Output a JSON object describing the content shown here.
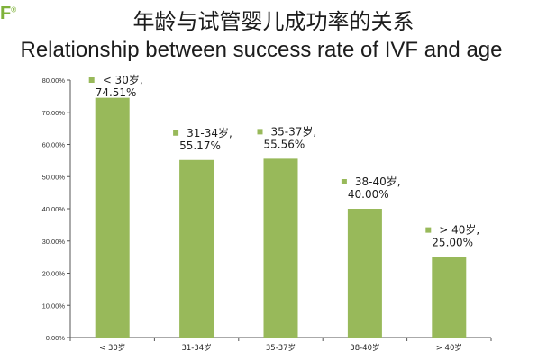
{
  "logo": {
    "text": "F",
    "mark": "®"
  },
  "title_cn": "年龄与试管婴儿成功率的关系",
  "title_en": "Relationship between success rate of IVF and age",
  "colors": {
    "bar": "#98b95a",
    "marker": "#98b95a",
    "axis": "#555555",
    "text": "#1c1c1c"
  },
  "chart_data": {
    "type": "bar",
    "title": "年龄与试管婴儿成功率的关系 / Relationship between success rate of IVF and age",
    "categories": [
      "< 30岁",
      "31-34岁",
      "35-37岁",
      "38-40岁",
      "> 40岁"
    ],
    "values": [
      74.51,
      55.17,
      55.56,
      40.0,
      25.0
    ],
    "value_unit": "%",
    "ylim": [
      0,
      80
    ],
    "ytick_step": 10,
    "ytick_labels": [
      "0.00%",
      "10.00%",
      "20.00%",
      "30.00%",
      "40.00%",
      "50.00%",
      "60.00%",
      "70.00%",
      "80.00%"
    ],
    "data_labels": [
      {
        "category": "< 30岁",
        "value": "74.51%"
      },
      {
        "category": "31-34岁",
        "value": "55.17%"
      },
      {
        "category": "35-37岁",
        "value": "55.56%"
      },
      {
        "category": "38-40岁",
        "value": "40.00%"
      },
      {
        "category": "> 40岁",
        "value": "25.00%"
      }
    ],
    "label_separator": ",",
    "xlabel": "",
    "ylabel": "",
    "grid": false,
    "legend": "none"
  }
}
